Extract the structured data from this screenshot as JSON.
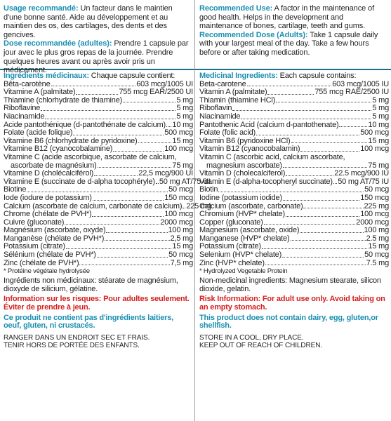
{
  "fr": {
    "usage_label": "Usage recommandé:",
    "usage_text": " Un facteur dans le maintien d'une bonne santé. Aide au développement et au maintien des os, des cartilages, des dents et des gencives.",
    "dose_label": "Dose recommandée (adultes):",
    "dose_text": " Prendre 1 capsule par jour avec le plus gros repas de la journée. Prendre quelques heures avant ou après avoir pris un médicament.",
    "ingr_label": "Ingrédients médicinaux:",
    "ingr_text": " Chaque capsule contient:",
    "items": [
      {
        "name": "Bêta-carotène",
        "value": "603 mcg/1005 UI"
      },
      {
        "name": "Vitamine A (palmitate)",
        "value": "755 mcg EAR/2500 UI"
      },
      {
        "name": "Thiamine (chlorhydrate de thiamine)",
        "value": "5 mg"
      },
      {
        "name": "Riboflavine",
        "value": "5 mg"
      },
      {
        "name": "Niacinamide",
        "value": "5 mg"
      },
      {
        "name": "Acide pantothénique (d-pantothénate de calcium)",
        "value": "10 mg"
      },
      {
        "name": "Folate (acide folique)",
        "value": "500 mcg"
      },
      {
        "name": "Vitamine B6 (chlorhydrate de pyridoxine)",
        "value": "15 mg"
      },
      {
        "name": "Vitamine B12 (cyanocobalamine)",
        "value": "100 mcg"
      },
      {
        "name": "Vitamine C (acide ascorbique, ascorbate de calcium,",
        "cont": "ascorbate de magnésium)",
        "value": "75 mg"
      },
      {
        "name": "Vitamine D (cholécalciférol)",
        "value": "22,5 mcg/900 UI"
      },
      {
        "name": "Vitamine E (succinate de d-alpha tocophéryle)",
        "value": "50 mg AT/75 UI"
      },
      {
        "name": "Biotine",
        "value": "50 mcg"
      },
      {
        "name": "Iode (iodure de potassium)",
        "value": "150 mcg"
      },
      {
        "name": "Calcium (ascorbate de calcium, carbonate de calcium)",
        "value": "225 mg"
      },
      {
        "name": "Chrome (chélate de PVH*)",
        "value": "100 mcg"
      },
      {
        "name": "Cuivre (gluconate)",
        "value": "2000 mcg"
      },
      {
        "name": "Magnésium (ascorbate, oxyde)",
        "value": "100 mg"
      },
      {
        "name": "Manganèse (chélate de PVH*)",
        "value": "2,5 mg"
      },
      {
        "name": "Potassium (citrate)",
        "value": "15 mg"
      },
      {
        "name": "Sélénium (chélate de PVH*)",
        "value": "50 mcg"
      },
      {
        "name": "Zinc (chélate de PVH*)",
        "value": "7,5 mg"
      }
    ],
    "footnote": "* Protéine végétale hydrolysée",
    "nonmed": "Ingrédients non médicinaux: stéarate de magnésium, dioxyde de silicium, gélatine.",
    "risk": "Information sur les risques: Pour adultes seulement. Éviter de prendre à jeun.",
    "dairy": "Ce produit ne contient pas d'ingrédients laitiers, oeuf, gluten, ni crustacés.",
    "store1": "RANGER DANS UN ENDROIT SEC ET FRAIS.",
    "store2": "TENIR HORS DE PORTÉE DES ENFANTS."
  },
  "en": {
    "usage_label": "Recommended Use:",
    "usage_text": " A factor in the maintenance of good health. Helps in the development and maintenance of bones, cartilage, teeth and gums.",
    "dose_label": "Recommended Dose (Adults):",
    "dose_text": " Take 1 capsule daily with your largest meal of the day. Take a few hours before or after taking medication.",
    "ingr_label": "Medicinal Ingredients:",
    "ingr_text": " Each capsule contains:",
    "items": [
      {
        "name": "Beta-carotene",
        "value": "603 mcg/1005 IU"
      },
      {
        "name": "Vitamin A (palmitate)",
        "value": "755 mcg RAE/2500 IU"
      },
      {
        "name": "Thiamin (thiamine HCl)",
        "value": "5 mg"
      },
      {
        "name": "Riboflavin",
        "value": "5 mg"
      },
      {
        "name": "Niacinamide",
        "value": "5 mg"
      },
      {
        "name": "Pantothenic Acid (calcium d-pantothenate)",
        "value": "10 mg"
      },
      {
        "name": "Folate (folic acid)",
        "value": "500 mcg"
      },
      {
        "name": "Vitamin B6 (pyridoxine HCl)",
        "value": "15 mg"
      },
      {
        "name": "Vitamin B12 (cyanocobalamin)",
        "value": "100 mcg"
      },
      {
        "name": "Vitamin C (ascorbic acid, calcium ascorbate,",
        "cont": "magnesium ascorbate)",
        "value": "75 mg"
      },
      {
        "name": "Vitamin D (cholecalciferol)",
        "value": "22.5 mcg/900 IU"
      },
      {
        "name": "Vitamin E (d-alpha-tocopheryl succinate)",
        "value": "50 mg AT/75 IU"
      },
      {
        "name": "Biotin",
        "value": "50 mcg"
      },
      {
        "name": "Iodine (potassium iodide)",
        "value": "150 mcg"
      },
      {
        "name": "Calcium (ascorbate, carbonate)",
        "value": "225 mg"
      },
      {
        "name": "Chromium (HVP* chelate)",
        "value": "100 mcg"
      },
      {
        "name": "Copper (gluconate)",
        "value": "2000 mcg"
      },
      {
        "name": "Magnesium (ascorbate, oxide)",
        "value": "100 mg"
      },
      {
        "name": "Manganese (HVP* chelate)",
        "value": "2.5 mg"
      },
      {
        "name": "Potassium (citrate)",
        "value": "15 mg"
      },
      {
        "name": "Selenium (HVP* chelate)",
        "value": "50 mcg"
      },
      {
        "name": "Zinc (HVP* chelate)",
        "value": "7.5 mg"
      }
    ],
    "footnote": "* Hydrolyzed Vegetable Protein",
    "nonmed": "Non-medicinal ingredients: Magnesium stearate, silicon dioxide, gelatin.",
    "risk": "Risk Information: For adult use only. Avoid taking on an empty stomach.",
    "dairy": "This product does not contain dairy, egg, gluten,or shellfish.",
    "store1": "STORE IN A COOL, DRY PLACE.",
    "store2": "KEEP OUT OF REACH OF CHILDREN."
  },
  "colors": {
    "accent": "#1a8fb0",
    "risk": "#d42020",
    "rule": "#1a6e8a"
  }
}
